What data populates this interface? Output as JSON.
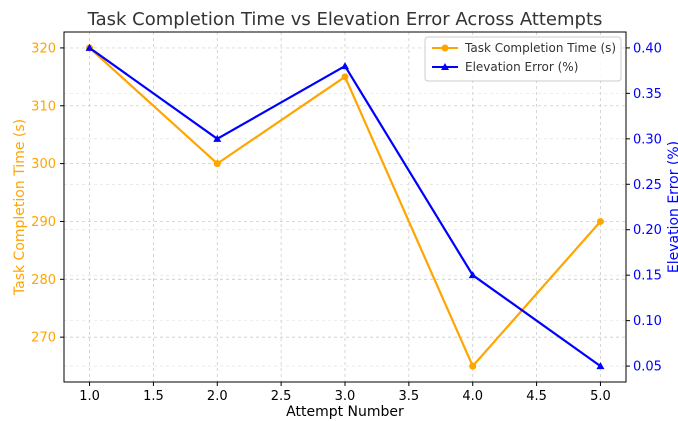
{
  "chart_data": {
    "type": "line",
    "title": "Task Completion Time vs Elevation Error Across Attempts",
    "xlabel": "Attempt Number",
    "x": [
      1.0,
      2.0,
      3.0,
      4.0,
      5.0
    ],
    "xlim": [
      0.8,
      5.2
    ],
    "x_ticks": [
      "1.0",
      "1.5",
      "2.0",
      "2.5",
      "3.0",
      "3.5",
      "4.0",
      "4.5",
      "5.0"
    ],
    "grid": true,
    "legend_position": "top-right",
    "series": [
      {
        "name": "Task Completion Time (s)",
        "axis": "left",
        "color": "#FFA500",
        "marker": "circle",
        "values": [
          320,
          300,
          315,
          265,
          290
        ]
      },
      {
        "name": "Elevation Error (%)",
        "axis": "right",
        "color": "#0000FF",
        "marker": "triangle",
        "values": [
          0.4,
          0.3,
          0.38,
          0.15,
          0.05
        ]
      }
    ],
    "y_left": {
      "label": "Task Completion Time (s)",
      "color": "#FFA500",
      "ylim": [
        262.25,
        322.75
      ],
      "ticks": [
        "270",
        "280",
        "290",
        "300",
        "310",
        "320"
      ]
    },
    "y_right": {
      "label": "Elevation Error (%)",
      "color": "#0000FF",
      "ylim": [
        0.0325,
        0.4175
      ],
      "ticks": [
        "0.05",
        "0.10",
        "0.15",
        "0.20",
        "0.25",
        "0.30",
        "0.35",
        "0.40"
      ]
    }
  }
}
